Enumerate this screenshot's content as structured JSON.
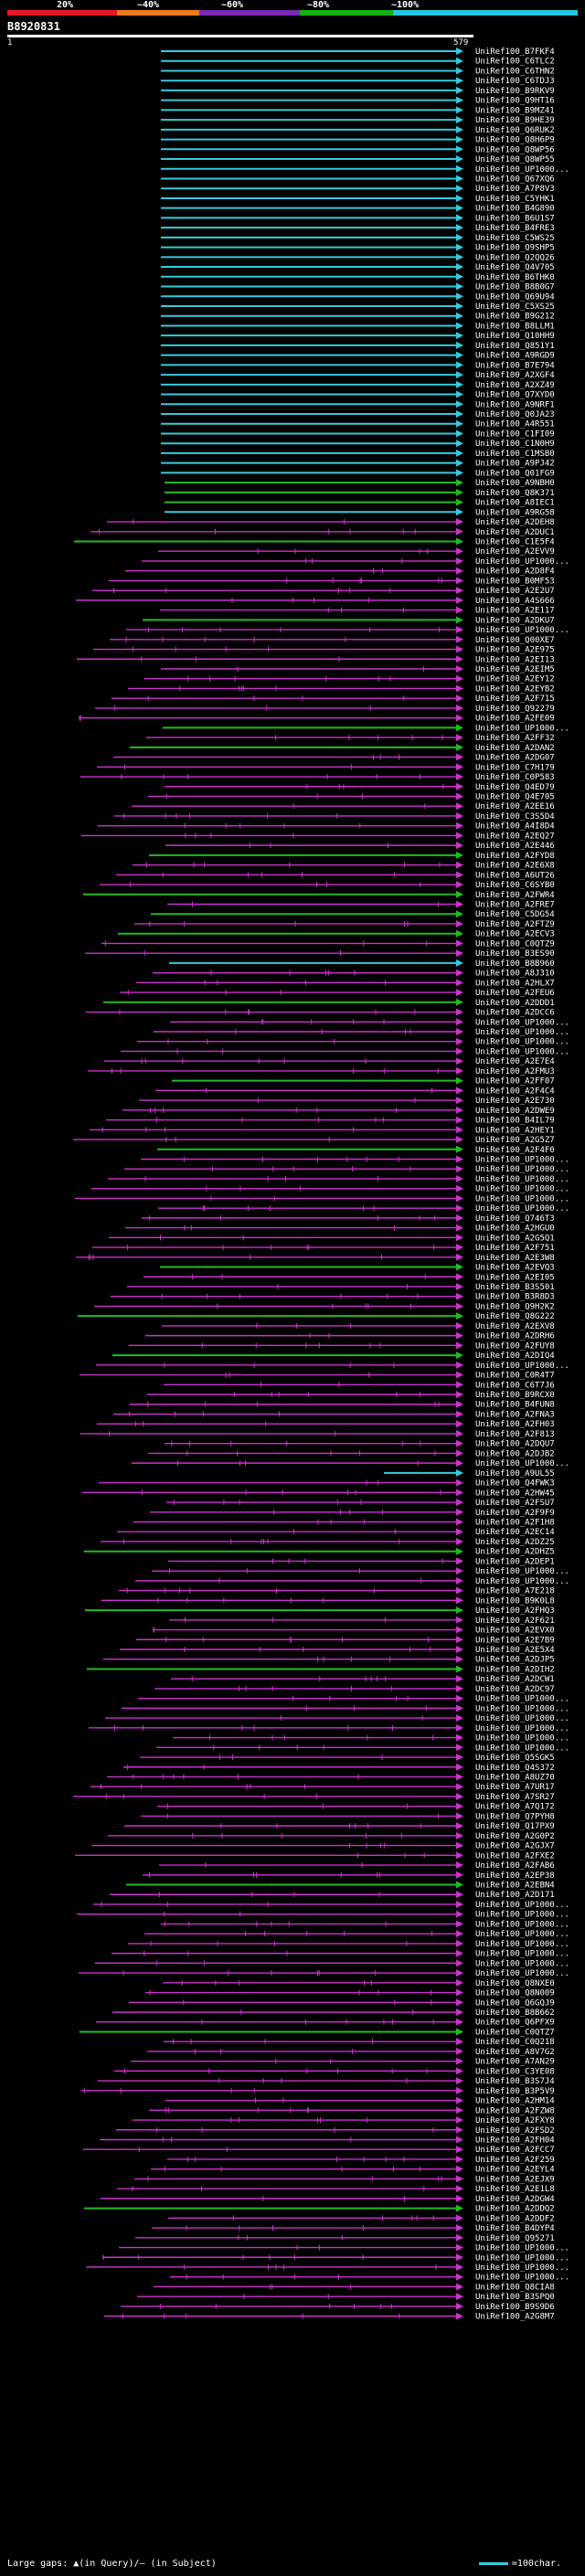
{
  "header": {
    "percent_labels": [
      "20%",
      "~40%",
      "~60%",
      "~80%",
      "~100%"
    ],
    "bar_colors": [
      "#e8142a",
      "#ee7a1a",
      "#7a2ab4",
      "#12b012",
      "#22c8e0"
    ]
  },
  "query": {
    "id": "B8920831",
    "ruler_start": "1",
    "ruler_end": "579"
  },
  "legend": {
    "gaps_text": "Large gaps: ▲(in Query)/— (in Subject)",
    "scale_text": "=100char."
  },
  "colors": {
    "identity_100": "#33ccdd",
    "identity_80": "#22bb22",
    "identity_60": "#cc33cc",
    "hsp_link": "#cc33cc"
  },
  "hits": [
    {
      "label": "UniRef100_B7FKF4",
      "cls": "c"
    },
    {
      "label": "UniRef100_C6TLC2",
      "cls": "c"
    },
    {
      "label": "UniRef100_C6THN2",
      "cls": "c"
    },
    {
      "label": "UniRef100_C6TDJ3",
      "cls": "c"
    },
    {
      "label": "UniRef100_B9RKV9",
      "cls": "c"
    },
    {
      "label": "UniRef100_Q9HT16",
      "cls": "c"
    },
    {
      "label": "UniRef100_B9MZ41",
      "cls": "c"
    },
    {
      "label": "UniRef100_B9HE39",
      "cls": "c"
    },
    {
      "label": "UniRef100_Q6RUK2",
      "cls": "c"
    },
    {
      "label": "UniRef100_Q8H6P9",
      "cls": "c"
    },
    {
      "label": "UniRef100_Q8WP56",
      "cls": "c"
    },
    {
      "label": "UniRef100_Q8WP55",
      "cls": "c"
    },
    {
      "label": "UniRef100_UP1000...",
      "cls": "c"
    },
    {
      "label": "UniRef100_Q67XQ6",
      "cls": "c"
    },
    {
      "label": "UniRef100_A7P8V3",
      "cls": "c"
    },
    {
      "label": "UniRef100_C5YHK1",
      "cls": "c"
    },
    {
      "label": "UniRef100_B4G890",
      "cls": "c"
    },
    {
      "label": "UniRef100_B6U1S7",
      "cls": "c"
    },
    {
      "label": "UniRef100_B4FRE3",
      "cls": "c"
    },
    {
      "label": "UniRef100_C5WS25",
      "cls": "c"
    },
    {
      "label": "UniRef100_Q9SHP5",
      "cls": "c"
    },
    {
      "label": "UniRef100_Q2QQ26",
      "cls": "c"
    },
    {
      "label": "UniRef100_Q4V705",
      "cls": "c"
    },
    {
      "label": "UniRef100_B6THK0",
      "cls": "c"
    },
    {
      "label": "UniRef100_B8B0G7",
      "cls": "c"
    },
    {
      "label": "UniRef100_Q69U94",
      "cls": "c"
    },
    {
      "label": "UniRef100_C5XS25",
      "cls": "c"
    },
    {
      "label": "UniRef100_B9G212",
      "cls": "c"
    },
    {
      "label": "UniRef100_B8LLM1",
      "cls": "c"
    },
    {
      "label": "UniRef100_Q10HH9",
      "cls": "c"
    },
    {
      "label": "UniRef100_Q851Y1",
      "cls": "c"
    },
    {
      "label": "UniRef100_A9RGD9",
      "cls": "c"
    },
    {
      "label": "UniRef100_B7E794",
      "cls": "c"
    },
    {
      "label": "UniRef100_A2XGF4",
      "cls": "c"
    },
    {
      "label": "UniRef100_A2XZ49",
      "cls": "c"
    },
    {
      "label": "UniRef100_Q7XYD0",
      "cls": "c"
    },
    {
      "label": "UniRef100_A9NRF1",
      "cls": "c"
    },
    {
      "label": "UniRef100_Q0JA23",
      "cls": "c"
    },
    {
      "label": "UniRef100_A4R551",
      "cls": "c"
    },
    {
      "label": "UniRef100_C1FI09",
      "cls": "c"
    },
    {
      "label": "UniRef100_C1N0H9",
      "cls": "c"
    },
    {
      "label": "UniRef100_C1MSB0",
      "cls": "c"
    },
    {
      "label": "UniRef100_A9PJ42",
      "cls": "c"
    },
    {
      "label": "UniRef100_Q01FG9",
      "cls": "c"
    },
    {
      "label": "UniRef100_A9NBH0",
      "cls": "g"
    },
    {
      "label": "UniRef100_Q8K371",
      "cls": "g"
    },
    {
      "label": "UniRef100_A8IEC1",
      "cls": "g"
    },
    {
      "label": "UniRef100_A9RG58",
      "cls": "c"
    },
    {
      "label": "UniRef100_A2DEH8",
      "cls": "m"
    },
    {
      "label": "UniRef100_A2DUC1",
      "cls": "m"
    },
    {
      "label": "UniRef100_C1E5F4",
      "cls": "g"
    },
    {
      "label": "UniRef100_A2EVV9",
      "cls": "m"
    },
    {
      "label": "UniRef100_UP1000...",
      "cls": "m"
    },
    {
      "label": "UniRef100_A2D8F4",
      "cls": "m"
    },
    {
      "label": "UniRef100_B0MF53",
      "cls": "m"
    },
    {
      "label": "UniRef100_A2E2U7",
      "cls": "m"
    },
    {
      "label": "UniRef100_A4S666",
      "cls": "m"
    },
    {
      "label": "UniRef100_A2E117",
      "cls": "m"
    },
    {
      "label": "UniRef100_A2DKU7",
      "cls": "g"
    },
    {
      "label": "UniRef100_UP1000...",
      "cls": "m"
    },
    {
      "label": "UniRef100_Q00XE7",
      "cls": "m"
    },
    {
      "label": "UniRef100_A2E975",
      "cls": "m"
    },
    {
      "label": "UniRef100_A2EI13",
      "cls": "m"
    },
    {
      "label": "UniRef100_A2EIM5",
      "cls": "m"
    },
    {
      "label": "UniRef100_A2EY12",
      "cls": "m"
    },
    {
      "label": "UniRef100_A2EYB2",
      "cls": "m"
    },
    {
      "label": "UniRef100_A2F715",
      "cls": "m"
    },
    {
      "label": "UniRef100_Q92279",
      "cls": "m"
    },
    {
      "label": "UniRef100_A2FE09",
      "cls": "m"
    },
    {
      "label": "UniRef100_UP1000...",
      "cls": "g"
    },
    {
      "label": "UniRef100_A2FF32",
      "cls": "m"
    },
    {
      "label": "UniRef100_A2DAN2",
      "cls": "g"
    },
    {
      "label": "UniRef100_A2DG07",
      "cls": "m"
    },
    {
      "label": "UniRef100_C7H179",
      "cls": "m"
    },
    {
      "label": "UniRef100_C0P583",
      "cls": "m"
    },
    {
      "label": "UniRef100_Q4ED79",
      "cls": "m"
    },
    {
      "label": "UniRef100_Q4E705",
      "cls": "m"
    },
    {
      "label": "UniRef100_A2EE16",
      "cls": "m"
    },
    {
      "label": "UniRef100_C3S5D4",
      "cls": "m"
    },
    {
      "label": "UniRef100_A4I8D4",
      "cls": "m"
    },
    {
      "label": "UniRef100_A2EQ27",
      "cls": "m"
    },
    {
      "label": "UniRef100_A2E446",
      "cls": "m"
    },
    {
      "label": "UniRef100_A2FYD8",
      "cls": "g"
    },
    {
      "label": "UniRef100_A2E6X8",
      "cls": "m"
    },
    {
      "label": "UniRef100_A6UT26",
      "cls": "m"
    },
    {
      "label": "UniRef100_C6SYB0",
      "cls": "m"
    },
    {
      "label": "UniRef100_A2FWR4",
      "cls": "g"
    },
    {
      "label": "UniRef100_A2FRE7",
      "cls": "m"
    },
    {
      "label": "UniRef100_C5DG54",
      "cls": "g"
    },
    {
      "label": "UniRef100_A2FTZ9",
      "cls": "m"
    },
    {
      "label": "UniRef100_A2ECV3",
      "cls": "g"
    },
    {
      "label": "UniRef100_C0QTZ9",
      "cls": "m"
    },
    {
      "label": "UniRef100_B3ES90",
      "cls": "m"
    },
    {
      "label": "UniRef100_B8B960",
      "cls": "c"
    },
    {
      "label": "UniRef100_A8J310",
      "cls": "m"
    },
    {
      "label": "UniRef100_A2HLX7",
      "cls": "m"
    },
    {
      "label": "UniRef100_A2FEU6",
      "cls": "m"
    },
    {
      "label": "UniRef100_A2DDD1",
      "cls": "g"
    },
    {
      "label": "UniRef100_A2DCC6",
      "cls": "m"
    },
    {
      "label": "UniRef100_UP1000...",
      "cls": "m"
    },
    {
      "label": "UniRef100_UP1000...",
      "cls": "m"
    },
    {
      "label": "UniRef100_UP1000...",
      "cls": "m"
    },
    {
      "label": "UniRef100_UP1000...",
      "cls": "m"
    },
    {
      "label": "UniRef100_A2E7E4",
      "cls": "m"
    },
    {
      "label": "UniRef100_A2FMU3",
      "cls": "m"
    },
    {
      "label": "UniRef100_A2FF07",
      "cls": "g"
    },
    {
      "label": "UniRef100_A2F4C4",
      "cls": "m"
    },
    {
      "label": "UniRef100_A2E730",
      "cls": "m"
    },
    {
      "label": "UniRef100_A2DWE9",
      "cls": "m"
    },
    {
      "label": "UniRef100_B4IL79",
      "cls": "m"
    },
    {
      "label": "UniRef100_A2HEY1",
      "cls": "m"
    },
    {
      "label": "UniRef100_A2G5Z7",
      "cls": "m"
    },
    {
      "label": "UniRef100_A2F4F0",
      "cls": "g"
    },
    {
      "label": "UniRef100_UP1000...",
      "cls": "m"
    },
    {
      "label": "UniRef100_UP1000...",
      "cls": "m"
    },
    {
      "label": "UniRef100_UP1000...",
      "cls": "m"
    },
    {
      "label": "UniRef100_UP1000...",
      "cls": "m"
    },
    {
      "label": "UniRef100_UP1000...",
      "cls": "m"
    },
    {
      "label": "UniRef100_UP1000...",
      "cls": "m"
    },
    {
      "label": "UniRef100_Q746T3",
      "cls": "m"
    },
    {
      "label": "UniRef100_A2HGU0",
      "cls": "m"
    },
    {
      "label": "UniRef100_A2G5Q1",
      "cls": "m"
    },
    {
      "label": "UniRef100_A2F751",
      "cls": "m"
    },
    {
      "label": "UniRef100_A2E3W8",
      "cls": "m"
    },
    {
      "label": "UniRef100_A2EVQ3",
      "cls": "g"
    },
    {
      "label": "UniRef100_A2EI05",
      "cls": "m"
    },
    {
      "label": "UniRef100_B3S501",
      "cls": "m"
    },
    {
      "label": "UniRef100_B3R8D3",
      "cls": "m"
    },
    {
      "label": "UniRef100_Q9H2K2",
      "cls": "m"
    },
    {
      "label": "UniRef100_Q8G222",
      "cls": "g"
    },
    {
      "label": "UniRef100_A2EXV8",
      "cls": "m"
    },
    {
      "label": "UniRef100_A2DRH6",
      "cls": "m"
    },
    {
      "label": "UniRef100_A2FUY8",
      "cls": "m"
    },
    {
      "label": "UniRef100_A2DIQ4",
      "cls": "g"
    },
    {
      "label": "UniRef100_UP1000...",
      "cls": "m"
    },
    {
      "label": "UniRef100_C0R4T7",
      "cls": "m"
    },
    {
      "label": "UniRef100_C6T7J6",
      "cls": "m"
    },
    {
      "label": "UniRef100_B9RCX0",
      "cls": "m"
    },
    {
      "label": "UniRef100_B4FUN8",
      "cls": "m"
    },
    {
      "label": "UniRef100_A2FNA3",
      "cls": "m"
    },
    {
      "label": "UniRef100_A2FH03",
      "cls": "m"
    },
    {
      "label": "UniRef100_A2F813",
      "cls": "m"
    },
    {
      "label": "UniRef100_A2DQU7",
      "cls": "m"
    },
    {
      "label": "UniRef100_A2DJB2",
      "cls": "m"
    },
    {
      "label": "UniRef100_UP1000...",
      "cls": "m"
    },
    {
      "label": "UniRef100_A9UL55",
      "cls": "c"
    },
    {
      "label": "UniRef100_Q4FWK3",
      "cls": "m"
    },
    {
      "label": "UniRef100_A2HW45",
      "cls": "m"
    },
    {
      "label": "UniRef100_A2FSU7",
      "cls": "m"
    },
    {
      "label": "UniRef100_A2F9F9",
      "cls": "m"
    },
    {
      "label": "UniRef100_A2F1H8",
      "cls": "m"
    },
    {
      "label": "UniRef100_A2EC14",
      "cls": "m"
    },
    {
      "label": "UniRef100_A2DZ25",
      "cls": "m"
    },
    {
      "label": "UniRef100_A2DHZ5",
      "cls": "g"
    },
    {
      "label": "UniRef100_A2DEP1",
      "cls": "m"
    },
    {
      "label": "UniRef100_UP1000...",
      "cls": "m"
    },
    {
      "label": "UniRef100_UP1000...",
      "cls": "m"
    },
    {
      "label": "UniRef100_A7E218",
      "cls": "m"
    },
    {
      "label": "UniRef100_B9K0L8",
      "cls": "m"
    },
    {
      "label": "UniRef100_A2FHQ3",
      "cls": "g"
    },
    {
      "label": "UniRef100_A2F621",
      "cls": "m"
    },
    {
      "label": "UniRef100_A2EVX0",
      "cls": "m"
    },
    {
      "label": "UniRef100_A2E7B9",
      "cls": "m"
    },
    {
      "label": "UniRef100_A2E5X4",
      "cls": "m"
    },
    {
      "label": "UniRef100_A2DJP5",
      "cls": "m"
    },
    {
      "label": "UniRef100_A2DIH2",
      "cls": "g"
    },
    {
      "label": "UniRef100_A2DCW1",
      "cls": "m"
    },
    {
      "label": "UniRef100_A2DC97",
      "cls": "m"
    },
    {
      "label": "UniRef100_UP1000...",
      "cls": "m"
    },
    {
      "label": "UniRef100_UP1000...",
      "cls": "m"
    },
    {
      "label": "UniRef100_UP1000...",
      "cls": "m"
    },
    {
      "label": "UniRef100_UP1000...",
      "cls": "m"
    },
    {
      "label": "UniRef100_UP1000...",
      "cls": "m"
    },
    {
      "label": "UniRef100_UP1000...",
      "cls": "m"
    },
    {
      "label": "UniRef100_Q5SGK5",
      "cls": "m"
    },
    {
      "label": "UniRef100_Q4S372",
      "cls": "m"
    },
    {
      "label": "UniRef100_A8UZ70",
      "cls": "m"
    },
    {
      "label": "UniRef100_A7UR17",
      "cls": "m"
    },
    {
      "label": "UniRef100_A7SR27",
      "cls": "m"
    },
    {
      "label": "UniRef100_A7Q172",
      "cls": "m"
    },
    {
      "label": "UniRef100_Q7PYH8",
      "cls": "m"
    },
    {
      "label": "UniRef100_Q17PX9",
      "cls": "m"
    },
    {
      "label": "UniRef100_A2G0P2",
      "cls": "m"
    },
    {
      "label": "UniRef100_A2GJX7",
      "cls": "m"
    },
    {
      "label": "UniRef100_A2FXE2",
      "cls": "m"
    },
    {
      "label": "UniRef100_A2FAB6",
      "cls": "m"
    },
    {
      "label": "UniRef100_A2EP38",
      "cls": "m"
    },
    {
      "label": "UniRef100_A2EBN4",
      "cls": "g"
    },
    {
      "label": "UniRef100_A2D171",
      "cls": "m"
    },
    {
      "label": "UniRef100_UP1000...",
      "cls": "m"
    },
    {
      "label": "UniRef100_UP1000...",
      "cls": "m"
    },
    {
      "label": "UniRef100_UP1000...",
      "cls": "m"
    },
    {
      "label": "UniRef100_UP1000...",
      "cls": "m"
    },
    {
      "label": "UniRef100_UP1000...",
      "cls": "m"
    },
    {
      "label": "UniRef100_UP1000...",
      "cls": "m"
    },
    {
      "label": "UniRef100_UP1000...",
      "cls": "m"
    },
    {
      "label": "UniRef100_UP1000...",
      "cls": "m"
    },
    {
      "label": "UniRef100_Q8NXE0",
      "cls": "m"
    },
    {
      "label": "UniRef100_Q8N009",
      "cls": "m"
    },
    {
      "label": "UniRef100_Q6GQJ9",
      "cls": "m"
    },
    {
      "label": "UniRef100_B8B662",
      "cls": "m"
    },
    {
      "label": "UniRef100_Q6PFX9",
      "cls": "m"
    },
    {
      "label": "UniRef100_C0QTZ7",
      "cls": "g"
    },
    {
      "label": "UniRef100_C0Q218",
      "cls": "m"
    },
    {
      "label": "UniRef100_A8V7G2",
      "cls": "m"
    },
    {
      "label": "UniRef100_A7AN29",
      "cls": "m"
    },
    {
      "label": "UniRef100_C3YE08",
      "cls": "m"
    },
    {
      "label": "UniRef100_B3S7J4",
      "cls": "m"
    },
    {
      "label": "UniRef100_B3P5V9",
      "cls": "m"
    },
    {
      "label": "UniRef100_A2HM14",
      "cls": "m"
    },
    {
      "label": "UniRef100_A2FZW8",
      "cls": "m"
    },
    {
      "label": "UniRef100_A2FXY8",
      "cls": "m"
    },
    {
      "label": "UniRef100_A2FSD2",
      "cls": "m"
    },
    {
      "label": "UniRef100_A2FH04",
      "cls": "m"
    },
    {
      "label": "UniRef100_A2FCC7",
      "cls": "m"
    },
    {
      "label": "UniRef100_A2F259",
      "cls": "m"
    },
    {
      "label": "UniRef100_A2EYL4",
      "cls": "m"
    },
    {
      "label": "UniRef100_A2EJX9",
      "cls": "m"
    },
    {
      "label": "UniRef100_A2E1L8",
      "cls": "m"
    },
    {
      "label": "UniRef100_A2DGW4",
      "cls": "m"
    },
    {
      "label": "UniRef100_A2DDQ2",
      "cls": "g"
    },
    {
      "label": "UniRef100_A2DDF2",
      "cls": "m"
    },
    {
      "label": "UniRef100_B4DYP4",
      "cls": "m"
    },
    {
      "label": "UniRef100_Q95271",
      "cls": "m"
    },
    {
      "label": "UniRef100_UP1000...",
      "cls": "m"
    },
    {
      "label": "UniRef100_UP1000...",
      "cls": "m"
    },
    {
      "label": "UniRef100_UP1000...",
      "cls": "m"
    },
    {
      "label": "UniRef100_UP1000...",
      "cls": "m"
    },
    {
      "label": "UniRef100_Q8CIA8",
      "cls": "m"
    },
    {
      "label": "UniRef100_B3SPQ0",
      "cls": "m"
    },
    {
      "label": "UniRef100_B9S9D6",
      "cls": "m"
    },
    {
      "label": "UniRef100_A2G8M7",
      "cls": "m"
    }
  ]
}
